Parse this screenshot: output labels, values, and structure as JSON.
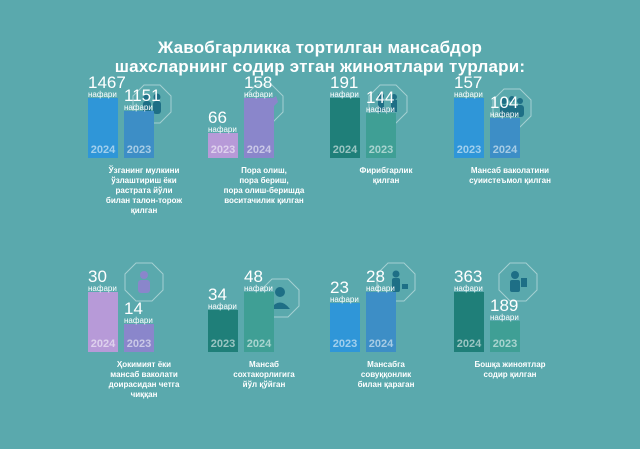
{
  "title": {
    "line1": "Жавобгарликка тортилган мансабдор",
    "line2": "шахсларнинг содир этган жиноятлари турлари:"
  },
  "unit": "нафари",
  "colors": {
    "background": "#5aa9ad",
    "blue": "#2f96d8",
    "blue_light": "#3d8ec6",
    "dark_teal": "#1f7f79",
    "teal": "#3f9f95",
    "violet": "#b79ad8",
    "violet_mid": "#8a86cb"
  },
  "chart_data": [
    {
      "type": "bar",
      "caption": [
        "Ўзганинг мулкини",
        "ўзлаштириш ёки",
        "растрата йўли",
        "билан талон-торож",
        "қилган"
      ],
      "icon": "people-icon",
      "bars": [
        {
          "year": "2024",
          "value": 1467,
          "color": "#2f96d8"
        },
        {
          "year": "2023",
          "value": 1151,
          "color": "#3d8ec6"
        }
      ]
    },
    {
      "type": "bar",
      "caption": [
        "Пора олиш,",
        "пора бериш,",
        "пора олиш-беришда",
        "воситачилик қилган"
      ],
      "icon": "handshake-icon",
      "bars": [
        {
          "year": "2023",
          "value": 66,
          "color": "#b79ad8"
        },
        {
          "year": "2024",
          "value": 158,
          "color": "#8a86cb"
        }
      ]
    },
    {
      "type": "bar",
      "caption": [
        "Фирибгарлик",
        "қилган"
      ],
      "icon": "fraud-icon",
      "bars": [
        {
          "year": "2024",
          "value": 191,
          "color": "#1f7f79"
        },
        {
          "year": "2023",
          "value": 144,
          "color": "#3f9f95"
        }
      ]
    },
    {
      "type": "bar",
      "caption": [
        "Мансаб ваколатини",
        "суиистеъмол қилган"
      ],
      "icon": "crowd-icon",
      "bars": [
        {
          "year": "2023",
          "value": 157,
          "color": "#2f96d8"
        },
        {
          "year": "2024",
          "value": 104,
          "color": "#3d8ec6"
        }
      ]
    },
    {
      "type": "bar",
      "caption": [
        "Ҳокимият ёки",
        "мансаб ваколати",
        "доирасидан четга",
        "чиққан"
      ],
      "icon": "official-icon",
      "bars": [
        {
          "year": "2024",
          "value": 30,
          "color": "#b79ad8"
        },
        {
          "year": "2023",
          "value": 14,
          "color": "#8a86cb"
        }
      ]
    },
    {
      "type": "bar",
      "caption": [
        "Мансаб",
        "сохтакорлигига",
        "йўл қўйган"
      ],
      "icon": "manager-icon",
      "bars": [
        {
          "year": "2023",
          "value": 34,
          "color": "#1f7f79"
        },
        {
          "year": "2024",
          "value": 48,
          "color": "#3f9f95"
        }
      ]
    },
    {
      "type": "bar",
      "caption": [
        "Мансабга",
        "совуққонлик",
        "билан қараган"
      ],
      "icon": "negligence-icon",
      "bars": [
        {
          "year": "2023",
          "value": 23,
          "color": "#2f96d8"
        },
        {
          "year": "2024",
          "value": 28,
          "color": "#3d8ec6"
        }
      ]
    },
    {
      "type": "bar",
      "caption": [
        "Бошқа жиноятлар",
        "содир қилган"
      ],
      "icon": "other-crimes-icon",
      "bars": [
        {
          "year": "2024",
          "value": 363,
          "color": "#1f7f79"
        },
        {
          "year": "2023",
          "value": 189,
          "color": "#3f9f95"
        }
      ]
    }
  ]
}
